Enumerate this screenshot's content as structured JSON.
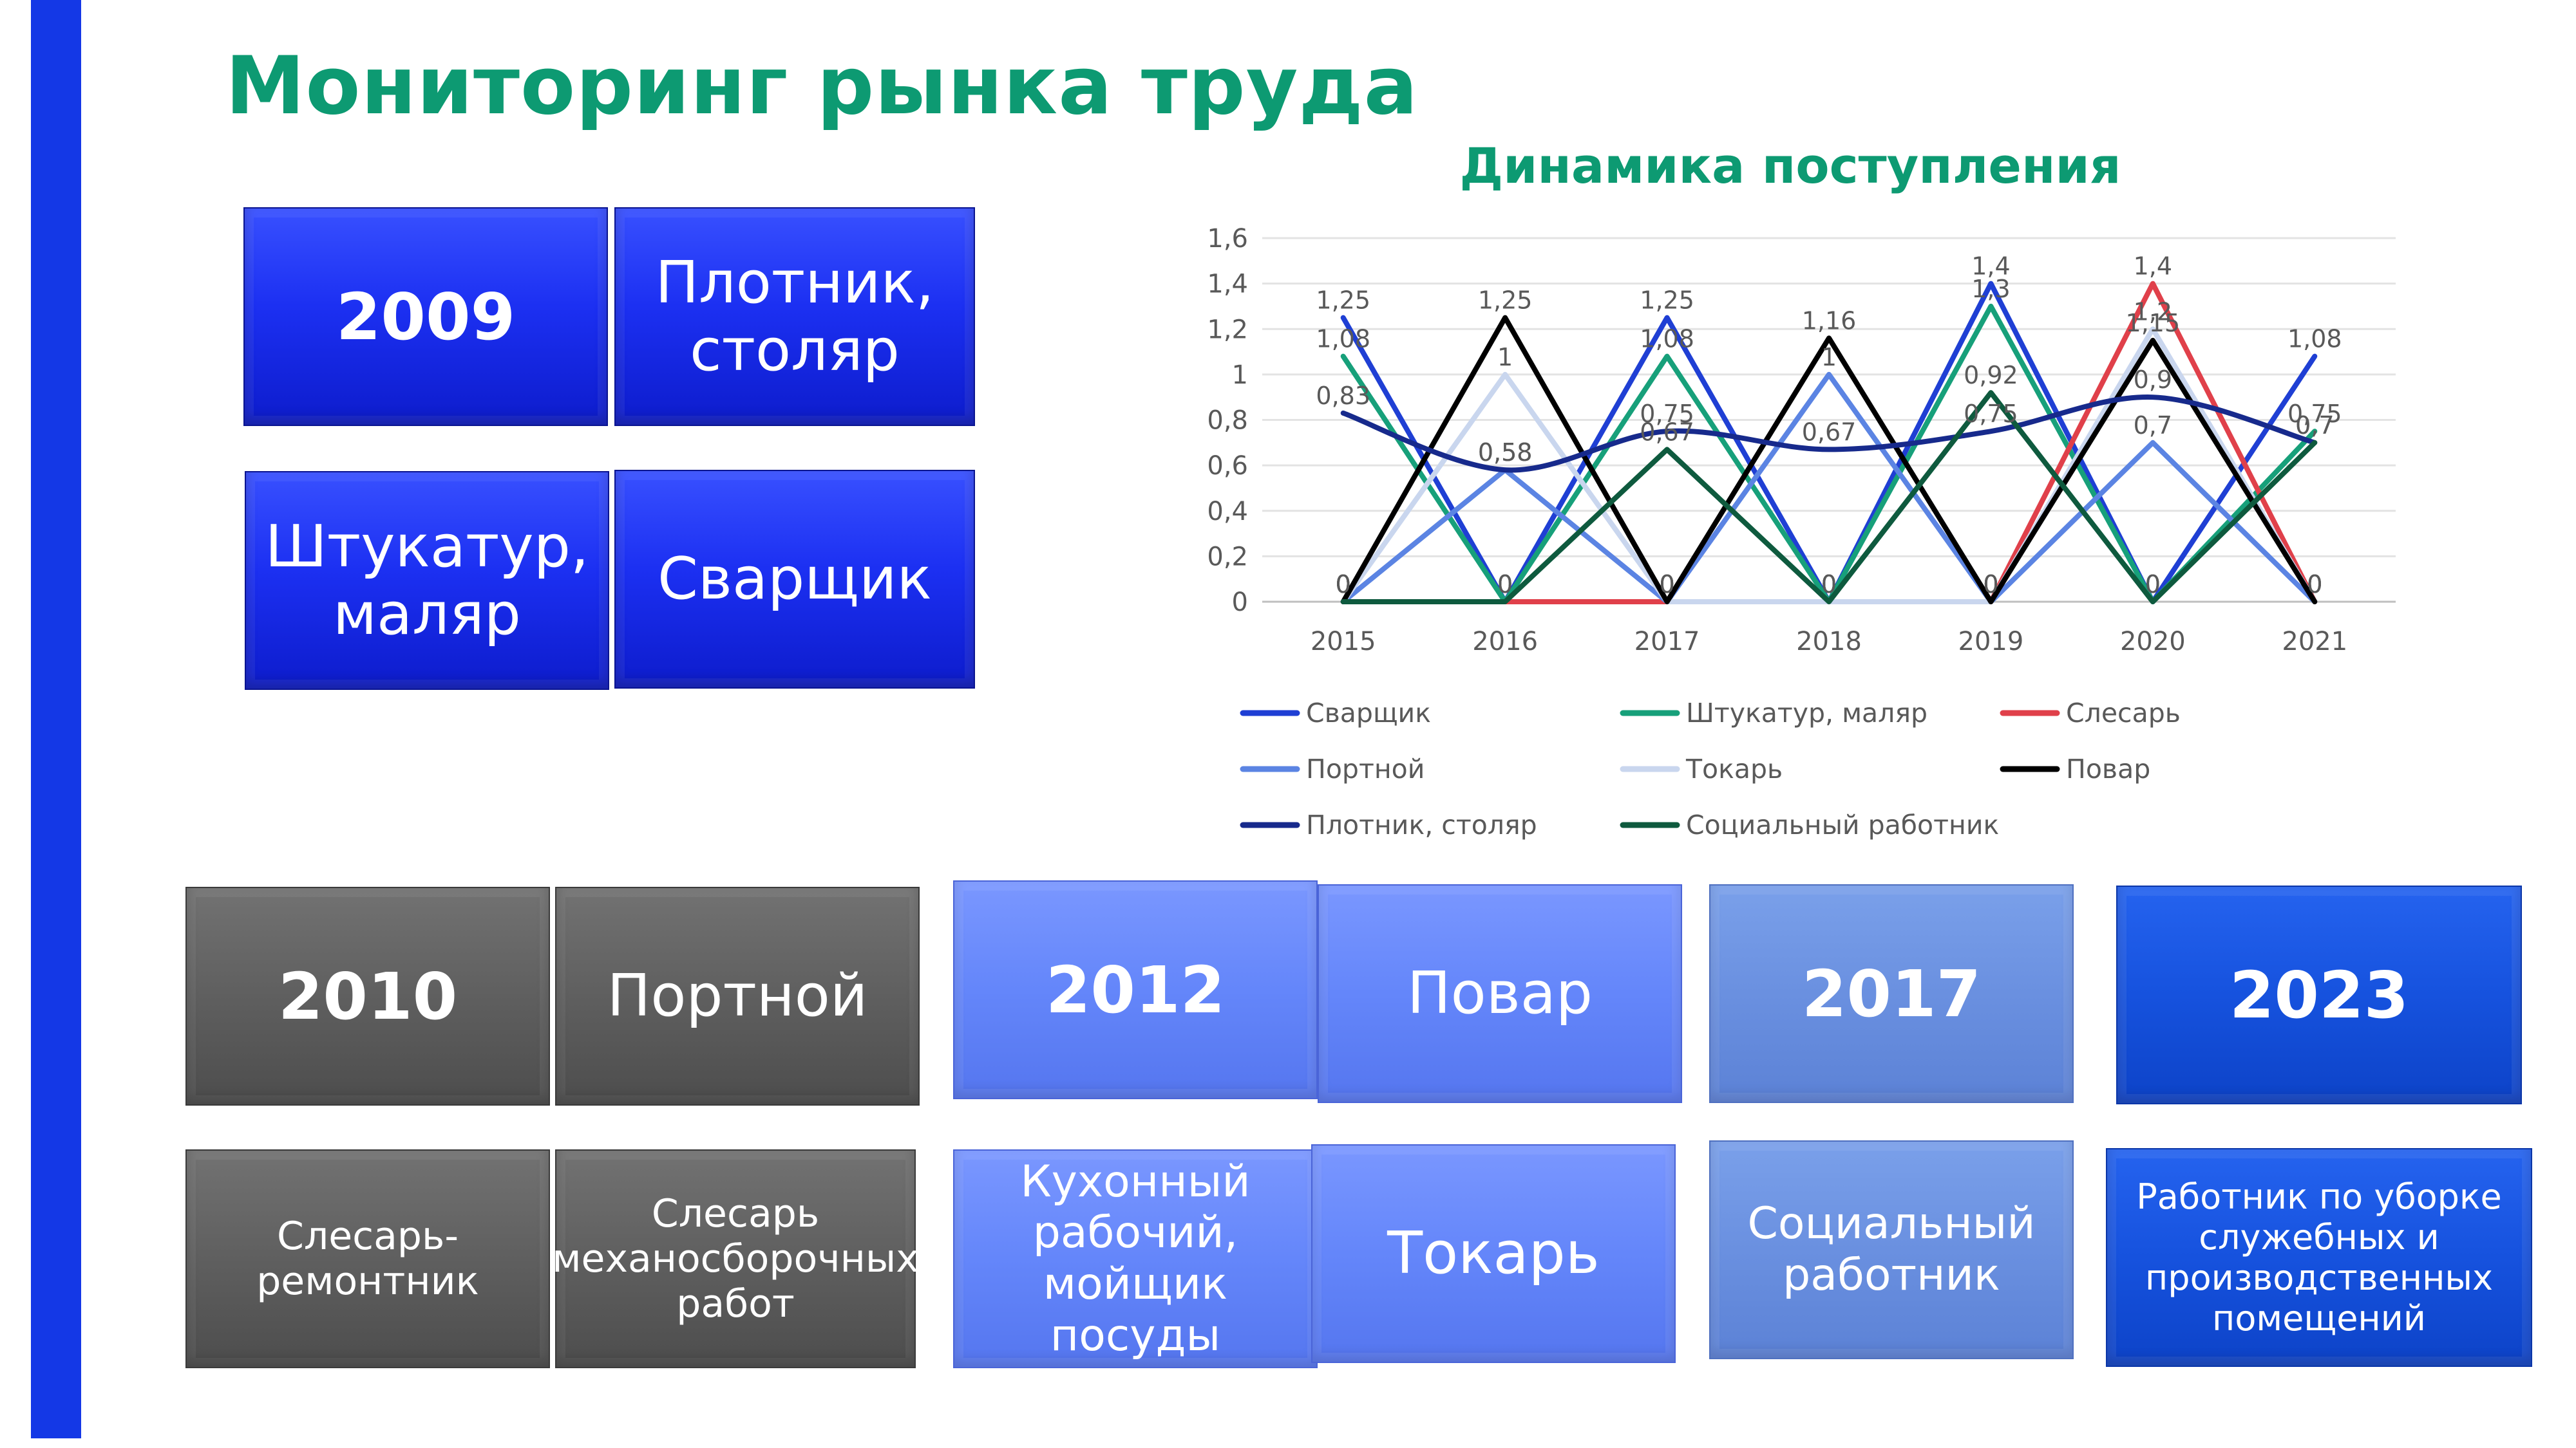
{
  "page": {
    "title": "Мониторинг рынка труда"
  },
  "tiles": {
    "t2009": {
      "year": "2009",
      "p1": "Плотник, столяр",
      "p2": "Штукатур, маляр",
      "p3": "Сварщик"
    },
    "t2010": {
      "year": "2010",
      "p1": "Портной",
      "p2": "Слесарь-ремонтник",
      "p3": "Слесарь механосборочных работ"
    },
    "t2012": {
      "year": "2012",
      "p1": "Повар",
      "p2": "Кухонный рабочий, мойщик посуды",
      "p3": "Токарь"
    },
    "t2017": {
      "year": "2017",
      "p1": "Социальный работник"
    },
    "t2023": {
      "year": "2023",
      "p1": "Работник по уборке служебных и производственных помещений"
    }
  },
  "chart_data": {
    "type": "line",
    "title": "Динамика поступления",
    "categories": [
      "2015",
      "2016",
      "2017",
      "2018",
      "2019",
      "2020",
      "2021"
    ],
    "ylim": [
      0,
      1.6
    ],
    "yticks": [
      0,
      0.2,
      0.4,
      0.6,
      0.8,
      1,
      1.2,
      1.4,
      1.6
    ],
    "ytick_labels": [
      "0",
      "0,2",
      "0,4",
      "0,6",
      "0,8",
      "1",
      "1,2",
      "1,4",
      "1,6"
    ],
    "xlabel": "",
    "ylabel": "",
    "grid": true,
    "legend_position": "bottom",
    "series": [
      {
        "name": "Сварщик",
        "color": "#1f3fd4",
        "smooth": false,
        "values": [
          1.25,
          0,
          1.25,
          0,
          1.4,
          0,
          1.08
        ],
        "labels": [
          "1,25",
          "0",
          "1,25",
          "0",
          "1,4",
          "0",
          "1,08"
        ]
      },
      {
        "name": "Штукатур, маляр",
        "color": "#17a07a",
        "smooth": false,
        "values": [
          1.08,
          0,
          1.08,
          0,
          1.3,
          0,
          0.75
        ],
        "labels": [
          "1,08",
          "0",
          "1,08",
          "0",
          "1,3",
          "0",
          "0,75"
        ]
      },
      {
        "name": "Слесарь",
        "color": "#e0404a",
        "smooth": false,
        "values": [
          0,
          0,
          0,
          0,
          0,
          1.4,
          0
        ],
        "labels": [
          "0",
          "0",
          "0",
          "0",
          "0",
          "1,4",
          "0"
        ]
      },
      {
        "name": "Портной",
        "color": "#5b84e3",
        "smooth": false,
        "values": [
          0,
          0.58,
          0,
          1,
          0,
          0.7,
          0
        ],
        "labels": [
          "0",
          "0,58",
          "0",
          "1",
          "0",
          "0,7",
          "0"
        ]
      },
      {
        "name": "Токарь",
        "color": "#c9d6ee",
        "smooth": false,
        "values": [
          0,
          1,
          0,
          0,
          0,
          1.2,
          0
        ],
        "labels": [
          "0",
          "1",
          "0",
          "0",
          "0",
          "1,2",
          "0"
        ]
      },
      {
        "name": "Повар",
        "color": "#000000",
        "smooth": false,
        "values": [
          0,
          1.25,
          0,
          1.16,
          0,
          1.15,
          0
        ],
        "labels": [
          "0",
          "1,25",
          "0",
          "1,16",
          "0",
          "1,15",
          "0"
        ]
      },
      {
        "name": "Плотник, столяр",
        "color": "#172a8c",
        "smooth": true,
        "values": [
          0.83,
          0.58,
          0.75,
          0.67,
          0.75,
          0.9,
          0.7
        ],
        "labels": [
          "0,83",
          "0,58",
          "0,75",
          "0,67",
          "0,75",
          "0,9",
          "0,7"
        ]
      },
      {
        "name": "Социальный работник",
        "color": "#0e5a3e",
        "smooth": false,
        "values": [
          0,
          0,
          0.67,
          0,
          0.92,
          0,
          0.7
        ],
        "labels": [
          "0",
          "0",
          "0,67",
          "0",
          "0,92",
          "0",
          "0,7"
        ]
      }
    ]
  }
}
